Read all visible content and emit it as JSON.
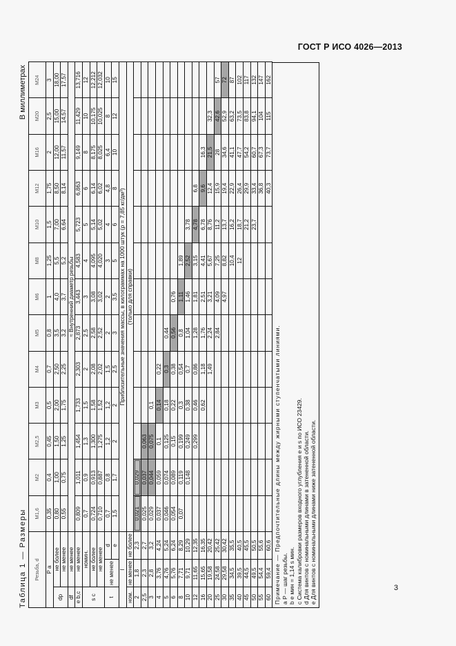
{
  "document": {
    "standard": "ГОСТ Р ИСО 4026—2013",
    "page_number": "3",
    "table_title": "Таблица 1 — Размеры",
    "units_note": "В миллиметрах"
  },
  "table": {
    "thread_label": "Резьба, d",
    "thread_sizes": [
      "M1,6",
      "M2",
      "M2,5",
      "M3",
      "M4",
      "M5",
      "M6",
      "M8",
      "M10",
      "M12",
      "M16",
      "M20",
      "M24"
    ],
    "rows": [
      {
        "param": "P a",
        "qual": "",
        "values": [
          "0,35",
          "0,4",
          "0,45",
          "0,5",
          "0,7",
          "0,8",
          "1",
          "1,25",
          "1,5",
          "1,75",
          "2",
          "2,5",
          "3"
        ]
      },
      {
        "param": "dp",
        "qual": "не более",
        "values": [
          "0,80",
          "1,00",
          "1,50",
          "2,00",
          "2,50",
          "3,5",
          "4,0",
          "5,5",
          "7,00",
          "8,50",
          "12,00",
          "15,00",
          "18,00"
        ]
      },
      {
        "param": "dp",
        "qual": "не менее",
        "values": [
          "0,55",
          "0,75",
          "1,25",
          "1,75",
          "2,25",
          "3,2",
          "3,7",
          "5,2",
          "6,64",
          "8,14",
          "11,57",
          "14,57",
          "17,57"
        ]
      },
      {
        "param": "df",
        "qual": "не менее",
        "values": [],
        "span_text": "≈ Внутренний диаметр резьбы"
      },
      {
        "param": "e b, c",
        "qual": "не менее",
        "values": [
          "0,809",
          "1,011",
          "1,454",
          "1,733",
          "2,303",
          "2,873",
          "3,443",
          "4,583",
          "5,723",
          "6,863",
          "9,149",
          "11,429",
          "13,716"
        ]
      },
      {
        "param": "s c",
        "qual": "номин.",
        "values": [
          "0,7",
          "0,9",
          "1,3",
          "1,5",
          "2",
          "2,5",
          "3",
          "4",
          "5",
          "6",
          "8",
          "10",
          "12"
        ]
      },
      {
        "param": "s c",
        "qual": "не более",
        "values": [
          "0,724",
          "0,913",
          "1,300",
          "1,58",
          "2,08",
          "2,58",
          "3,08",
          "4,095",
          "5,14",
          "6,14",
          "8,175",
          "10,175",
          "12,212"
        ]
      },
      {
        "param": "s c",
        "qual": "не менее",
        "values": [
          "0,710",
          "0,887",
          "1,275",
          "1,52",
          "2,02",
          "2,52",
          "3,02",
          "4,020",
          "5,02",
          "6,02",
          "8,025",
          "10,025",
          "12,032"
        ]
      },
      {
        "param": "t",
        "qual": "не менее d",
        "values": [
          "0,7",
          "0,8",
          "1,2",
          "1,2",
          "1,5",
          "2",
          "2",
          "3",
          "4",
          "4,8",
          "6,4",
          "8",
          "10"
        ]
      },
      {
        "param": "t",
        "qual": "не менее e",
        "values": [
          "1,5",
          "1,7",
          "2",
          "2",
          "2,5",
          "3",
          "3,5",
          "5",
          "6",
          "8",
          "10",
          "12",
          "15"
        ]
      }
    ],
    "mass_heading": "Приблизительные значения массы, в килограммах на 1000 штук (ρ = 7,85 кг/дм³)",
    "mass_subheading": "(только для справки)",
    "length_header": {
      "l": "l",
      "nom": "ном.",
      "min": "не менее",
      "max": "не более"
    },
    "length_rows": [
      {
        "nom": "2",
        "min": "1,8",
        "max": "2,3",
        "mass": [
          "0,021",
          "0,029",
          "",
          "",
          "",
          "",
          "",
          "",
          "",
          "",
          "",
          "",
          ""
        ]
      },
      {
        "nom": "2,5",
        "min": "2,3",
        "max": "2,7",
        "mass": [
          "0,025",
          "0,037",
          "0,063",
          "",
          "",
          "",
          "",
          "",
          "",
          "",
          "",
          "",
          ""
        ]
      },
      {
        "nom": "3",
        "min": "2,8",
        "max": "3,2",
        "mass": [
          "0,029",
          "0,044",
          "0,075",
          "0,1",
          "",
          "",
          "",
          "",
          "",
          "",
          "",
          "",
          ""
        ]
      },
      {
        "nom": "4",
        "min": "3,76",
        "max": "4,24",
        "mass": [
          "0,037",
          "0,059",
          "0,1",
          "0,14",
          "0,22",
          "",
          "",
          "",
          "",
          "",
          "",
          "",
          ""
        ]
      },
      {
        "nom": "5",
        "min": "4,76",
        "max": "5,24",
        "mass": [
          "0,046",
          "0,074",
          "0,125",
          "0,18",
          "0,3",
          "0,44",
          "",
          "",
          "",
          "",
          "",
          "",
          ""
        ]
      },
      {
        "nom": "6",
        "min": "5,76",
        "max": "6,24",
        "mass": [
          "0,054",
          "0,089",
          "0,15",
          "0,22",
          "0,38",
          "0,56",
          "0,76",
          "",
          "",
          "",
          "",
          "",
          ""
        ]
      },
      {
        "nom": "8",
        "min": "7,71",
        "max": "8,29",
        "mass": [
          "0,07",
          "0,119",
          "0,199",
          "0,3",
          "0,54",
          "0,8",
          "1,11",
          "1,89",
          "",
          "",
          "",
          "",
          ""
        ]
      },
      {
        "nom": "10",
        "min": "9,71",
        "max": "10,29",
        "mass": [
          "",
          "0,148",
          "0,249",
          "0,38",
          "0,7",
          "1,04",
          "1,46",
          "2,52",
          "3,78",
          "",
          "",
          "",
          ""
        ]
      },
      {
        "nom": "12",
        "min": "11,65",
        "max": "12,35",
        "mass": [
          "",
          "",
          "0,299",
          "0,46",
          "0,86",
          "1,28",
          "1,81",
          "3,15",
          "4,78",
          "6,8",
          "",
          "",
          ""
        ]
      },
      {
        "nom": "16",
        "min": "15,65",
        "max": "16,35",
        "mass": [
          "",
          "",
          "",
          "0,62",
          "1,18",
          "1,76",
          "2,51",
          "4,41",
          "6,78",
          "9,6",
          "16,3",
          "",
          ""
        ]
      },
      {
        "nom": "20",
        "min": "19,58",
        "max": "20,42",
        "mass": [
          "",
          "",
          "",
          "",
          "1,49",
          "2,24",
          "3,21",
          "5,67",
          "8,76",
          "12,4",
          "21,5",
          "32,3",
          ""
        ]
      },
      {
        "nom": "25",
        "min": "24,58",
        "max": "25,42",
        "mass": [
          "",
          "",
          "",
          "",
          "",
          "2,84",
          "4,09",
          "7,25",
          "11,2",
          "15,9",
          "28",
          "42,6",
          "57"
        ]
      },
      {
        "nom": "30",
        "min": "29,58",
        "max": "30,42",
        "mass": [
          "",
          "",
          "",
          "",
          "",
          "",
          "4,97",
          "8,82",
          "13,7",
          "19,4",
          "34,6",
          "52,9",
          "72"
        ]
      },
      {
        "nom": "35",
        "min": "34,5",
        "max": "35,5",
        "mass": [
          "",
          "",
          "",
          "",
          "",
          "",
          "",
          "10,4",
          "16,2",
          "22,9",
          "41,1",
          "63,2",
          "87"
        ]
      },
      {
        "nom": "40",
        "min": "39,5",
        "max": "40,5",
        "mass": [
          "",
          "",
          "",
          "",
          "",
          "",
          "",
          "12",
          "18,7",
          "26,4",
          "47,7",
          "73,5",
          "102"
        ]
      },
      {
        "nom": "45",
        "min": "44,5",
        "max": "45,5",
        "mass": [
          "",
          "",
          "",
          "",
          "",
          "",
          "",
          "",
          "21,2",
          "29,9",
          "54,2",
          "83,8",
          "117"
        ]
      },
      {
        "nom": "50",
        "min": "49,5",
        "max": "50,5",
        "mass": [
          "",
          "",
          "",
          "",
          "",
          "",
          "",
          "",
          "23,7",
          "33,4",
          "60,7",
          "94,1",
          "132"
        ]
      },
      {
        "nom": "55",
        "min": "54,4",
        "max": "55,6",
        "mass": [
          "",
          "",
          "",
          "",
          "",
          "",
          "",
          "",
          "",
          "36,8",
          "67,3",
          "104",
          "147"
        ]
      },
      {
        "nom": "60",
        "min": "59,4",
        "max": "60,6",
        "mass": [
          "",
          "",
          "",
          "",
          "",
          "",
          "",
          "",
          "",
          "40,3",
          "73,7",
          "115",
          "162"
        ]
      }
    ],
    "shaded_cells": [
      [
        1,
        1
      ],
      [
        1,
        2
      ],
      [
        2,
        1
      ],
      [
        2,
        2
      ],
      [
        3,
        3
      ],
      [
        4,
        4
      ],
      [
        5,
        5
      ],
      [
        6,
        6
      ],
      [
        7,
        7
      ],
      [
        8,
        8
      ],
      [
        9,
        9
      ],
      [
        10,
        10
      ],
      [
        11,
        11
      ],
      [
        12,
        12
      ]
    ],
    "boxed_cells": [
      [
        0,
        0
      ],
      [
        0,
        1
      ]
    ]
  },
  "notes": {
    "heading": "Примечание — Предпочтительные длины между жирными ступенчатыми линиями.",
    "items": [
      "a P — шаг резьбы.",
      "b e мин = 1,14 s мин.",
      "c Система калибровки размеров входного углубления e и s по ИСО 23429.",
      "d Для винтов с номинальными длинами в затененной области.",
      "e Для винтов с номинальными длинами ниже затененной области."
    ]
  }
}
